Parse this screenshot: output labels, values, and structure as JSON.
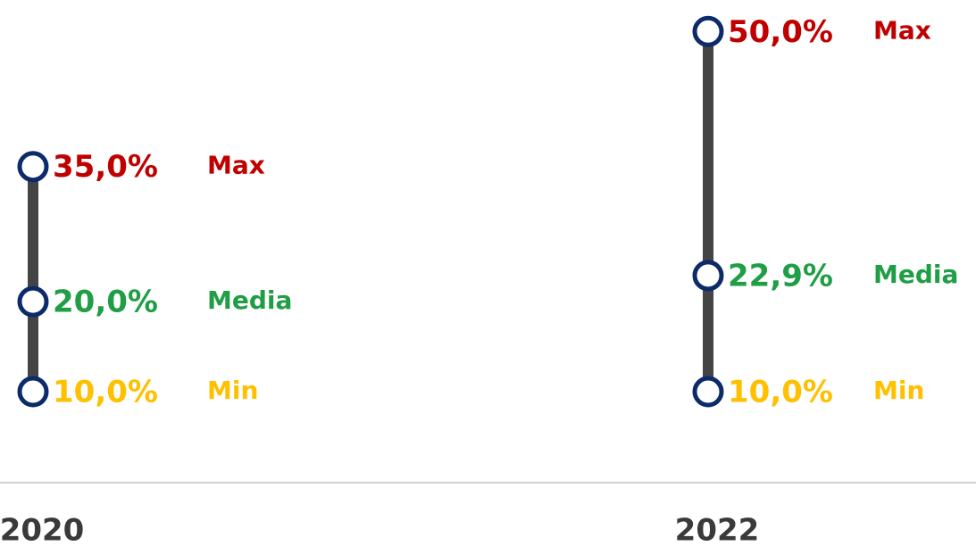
{
  "chart_data": {
    "type": "range",
    "categories": [
      "2020",
      "2022"
    ],
    "series": [
      {
        "name": "Max",
        "color": "#c00000",
        "values": [
          35.0,
          50.0
        ],
        "value_labels": [
          "35,0%",
          "50,0%"
        ]
      },
      {
        "name": "Media",
        "color": "#1f9e45",
        "values": [
          20.0,
          22.9
        ],
        "value_labels": [
          "20,0%",
          "22,9%"
        ]
      },
      {
        "name": "Min",
        "color": "#ffc000",
        "values": [
          10.0,
          10.0
        ],
        "value_labels": [
          "10,0%",
          "10,0%"
        ]
      }
    ],
    "ylim": [
      0,
      53
    ],
    "marker_color": "#0d2a6b",
    "range_color": "#444444"
  }
}
